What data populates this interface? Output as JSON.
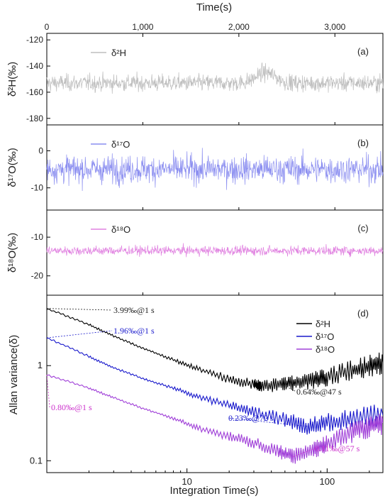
{
  "top_axis": {
    "label": "Time(s)",
    "ticks": [
      {
        "value": 0,
        "label": "0"
      },
      {
        "value": 1000,
        "label": "1,000"
      },
      {
        "value": 2000,
        "label": "2,000"
      },
      {
        "value": 3000,
        "label": "3,000"
      }
    ],
    "range": [
      0,
      3500
    ]
  },
  "panels": [
    {
      "id": "a",
      "letter": "(a)",
      "ylabel": "δ²H(‰)",
      "legend": "δ²H",
      "color": "#bdbdbd",
      "ylim": [
        -185,
        -115
      ],
      "yticks": [
        -180,
        -160,
        -140,
        -120
      ],
      "ytick_labels": [
        "-180",
        "-160",
        "-140",
        "-120"
      ],
      "mean": -153,
      "noise_sd": 4.5,
      "bump_center_s": 2280,
      "bump_height": 8
    },
    {
      "id": "b",
      "letter": "(b)",
      "ylabel": "δ¹⁷O(‰)",
      "legend": "δ¹⁷O",
      "color": "#8a8df0",
      "ylim": [
        -16,
        7
      ],
      "yticks": [
        -10,
        0
      ],
      "ytick_labels": [
        "-10",
        "0"
      ],
      "mean": -5,
      "noise_sd": 2.6
    },
    {
      "id": "c",
      "letter": "(c)",
      "ylabel": "δ¹⁸O(‰)",
      "legend": "δ¹⁸O",
      "color": "#e080e0",
      "ylim": [
        -25,
        -3
      ],
      "yticks": [
        -20,
        -10
      ],
      "ytick_labels": [
        "-20",
        "-10"
      ],
      "mean": -13.5,
      "noise_sd": 0.85
    }
  ],
  "chart_data": {
    "type": "line",
    "letter": "(d)",
    "xlabel": "Integration Time(s)",
    "ylabel": "Allan variance(δ)",
    "xscale": "log",
    "yscale": "log",
    "xlim": [
      1,
      250
    ],
    "ylim": [
      0.075,
      5.5
    ],
    "xticks": [
      10,
      100
    ],
    "xtick_labels": [
      "10",
      "100"
    ],
    "yticks": [
      0.1,
      1
    ],
    "ytick_labels": [
      "0.1",
      "1"
    ],
    "legend_position": "top-right",
    "series": [
      {
        "name": "δ²H",
        "color": "#000000",
        "x": [
          1,
          2,
          3,
          5,
          8,
          12,
          20,
          30,
          34,
          47,
          60,
          80,
          100,
          150,
          200,
          250
        ],
        "y": [
          3.99,
          2.7,
          2.05,
          1.5,
          1.15,
          0.92,
          0.72,
          0.64,
          0.6,
          0.64,
          0.66,
          0.7,
          0.76,
          0.88,
          0.98,
          1.08
        ]
      },
      {
        "name": "δ¹⁷O",
        "color": "#1a1acc",
        "x": [
          1,
          2,
          3,
          5,
          8,
          12,
          20,
          30,
          50,
          72,
          100,
          150,
          250
        ],
        "y": [
          1.96,
          1.25,
          0.95,
          0.72,
          0.58,
          0.47,
          0.38,
          0.32,
          0.27,
          0.23,
          0.25,
          0.27,
          0.3
        ]
      },
      {
        "name": "δ¹⁸O",
        "color": "#a040d8",
        "x": [
          1,
          2,
          3,
          5,
          8,
          12,
          20,
          30,
          45,
          57,
          80,
          100,
          150,
          200,
          250
        ],
        "y": [
          0.8,
          0.58,
          0.46,
          0.35,
          0.28,
          0.22,
          0.18,
          0.155,
          0.125,
          0.11,
          0.13,
          0.15,
          0.2,
          0.23,
          0.25
        ]
      }
    ],
    "annotations": [
      {
        "text": "3.99‰@1 s",
        "color": "#222222",
        "x": 1,
        "y": 3.99
      },
      {
        "text": "1.96‰@1 s",
        "color": "#1a1acc",
        "x": 1,
        "y": 1.96
      },
      {
        "text": "0.80‰@1 s",
        "color": "#cc33cc",
        "x": 1,
        "y": 0.8
      },
      {
        "text": "0.64‰@47 s",
        "color": "#222222",
        "x": 47,
        "y": 0.64
      },
      {
        "text": "0.23‰@72 s",
        "color": "#1a1acc",
        "x": 72,
        "y": 0.23
      },
      {
        "text": "0.11‰@57 s",
        "color": "#cc33cc",
        "x": 57,
        "y": 0.11
      }
    ]
  }
}
